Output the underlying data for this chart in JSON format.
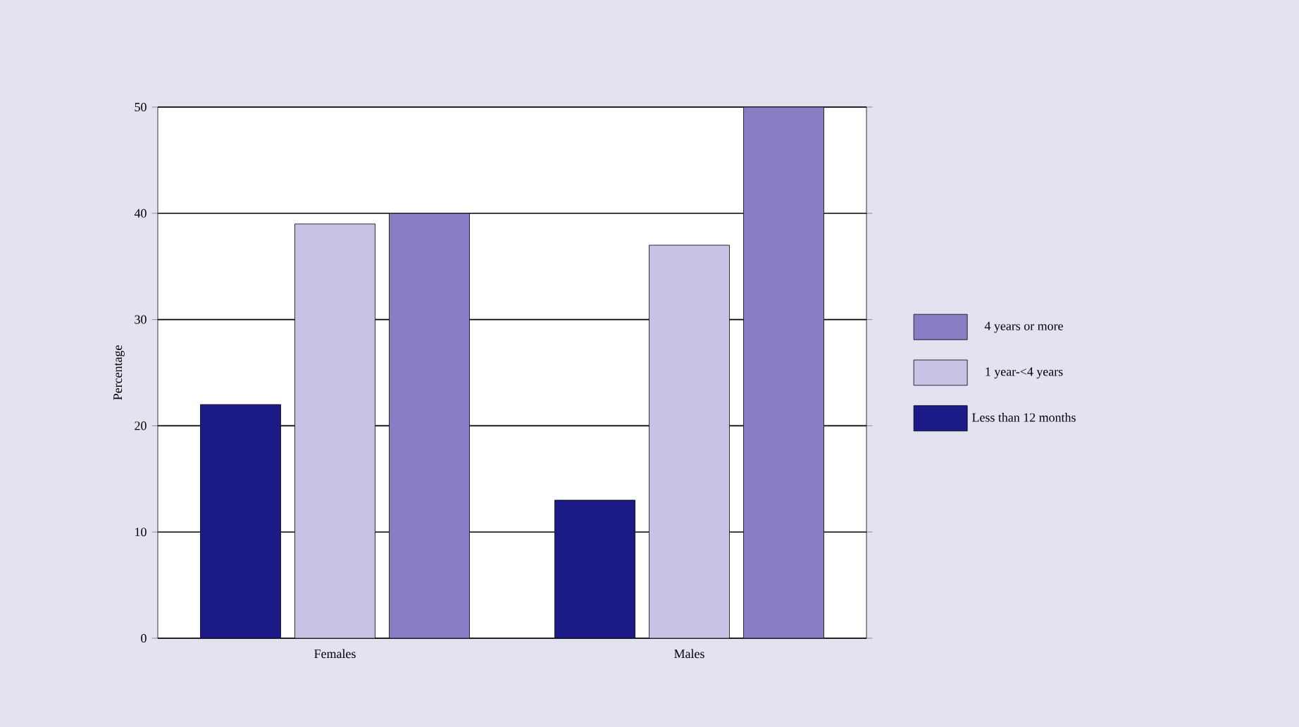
{
  "chart_data": {
    "type": "bar",
    "ylabel": "Percentage",
    "categories": [
      "Females",
      "Males"
    ],
    "series": [
      {
        "name": "Less than 12 months",
        "color": "#1c1a86",
        "values": [
          22,
          13
        ]
      },
      {
        "name": "1 year-<4 years",
        "color": "#c9c2e4",
        "values": [
          39,
          37
        ]
      },
      {
        "name": "4 years or more",
        "color": "#8a7cc4",
        "values": [
          40,
          50
        ]
      }
    ],
    "ylim": [
      0,
      50
    ],
    "yticks": [
      0,
      10,
      20,
      30,
      40,
      50
    ],
    "grid": "y",
    "legend": "right"
  }
}
